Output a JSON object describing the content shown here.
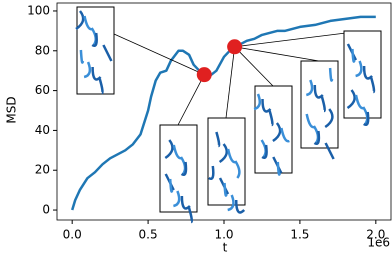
{
  "chart_data": {
    "type": "line",
    "x_label": "t",
    "y_label": "MSD",
    "x_offset_label": "1e6",
    "x": [
      0,
      0.02,
      0.05,
      0.1,
      0.15,
      0.2,
      0.25,
      0.3,
      0.35,
      0.4,
      0.45,
      0.5,
      0.52,
      0.55,
      0.58,
      0.62,
      0.65,
      0.7,
      0.73,
      0.77,
      0.8,
      0.85,
      0.88,
      0.9,
      0.95,
      1.0,
      1.05,
      1.1,
      1.15,
      1.2,
      1.25,
      1.3,
      1.35,
      1.4,
      1.5,
      1.6,
      1.7,
      1.8,
      1.9,
      1.95,
      2.0
    ],
    "series": [
      {
        "color": "#1f77b4",
        "values": [
          0,
          5,
          10,
          16,
          19,
          23,
          26,
          28,
          30,
          33,
          38,
          50,
          57,
          65,
          69,
          70,
          75,
          80,
          80,
          78,
          73,
          69,
          68,
          67,
          70,
          77,
          81,
          83,
          85,
          86,
          88,
          89,
          90,
          90,
          92,
          93,
          95,
          96,
          97,
          97,
          97
        ]
      }
    ],
    "highlights": {
      "color": "#e02020",
      "x": [
        0.87,
        1.07
      ],
      "values": [
        68,
        82
      ]
    },
    "xlim": [
      -0.1,
      2.1
    ],
    "ylim": [
      -5,
      104
    ],
    "xticks": [
      {
        "value": 0,
        "label": "0.0"
      },
      0.5,
      {
        "value": 1,
        "label": "1.0"
      },
      1.5,
      {
        "value": 2,
        "label": "2.0"
      }
    ],
    "yticks": [
      0,
      20,
      40,
      60,
      80,
      100
    ]
  }
}
